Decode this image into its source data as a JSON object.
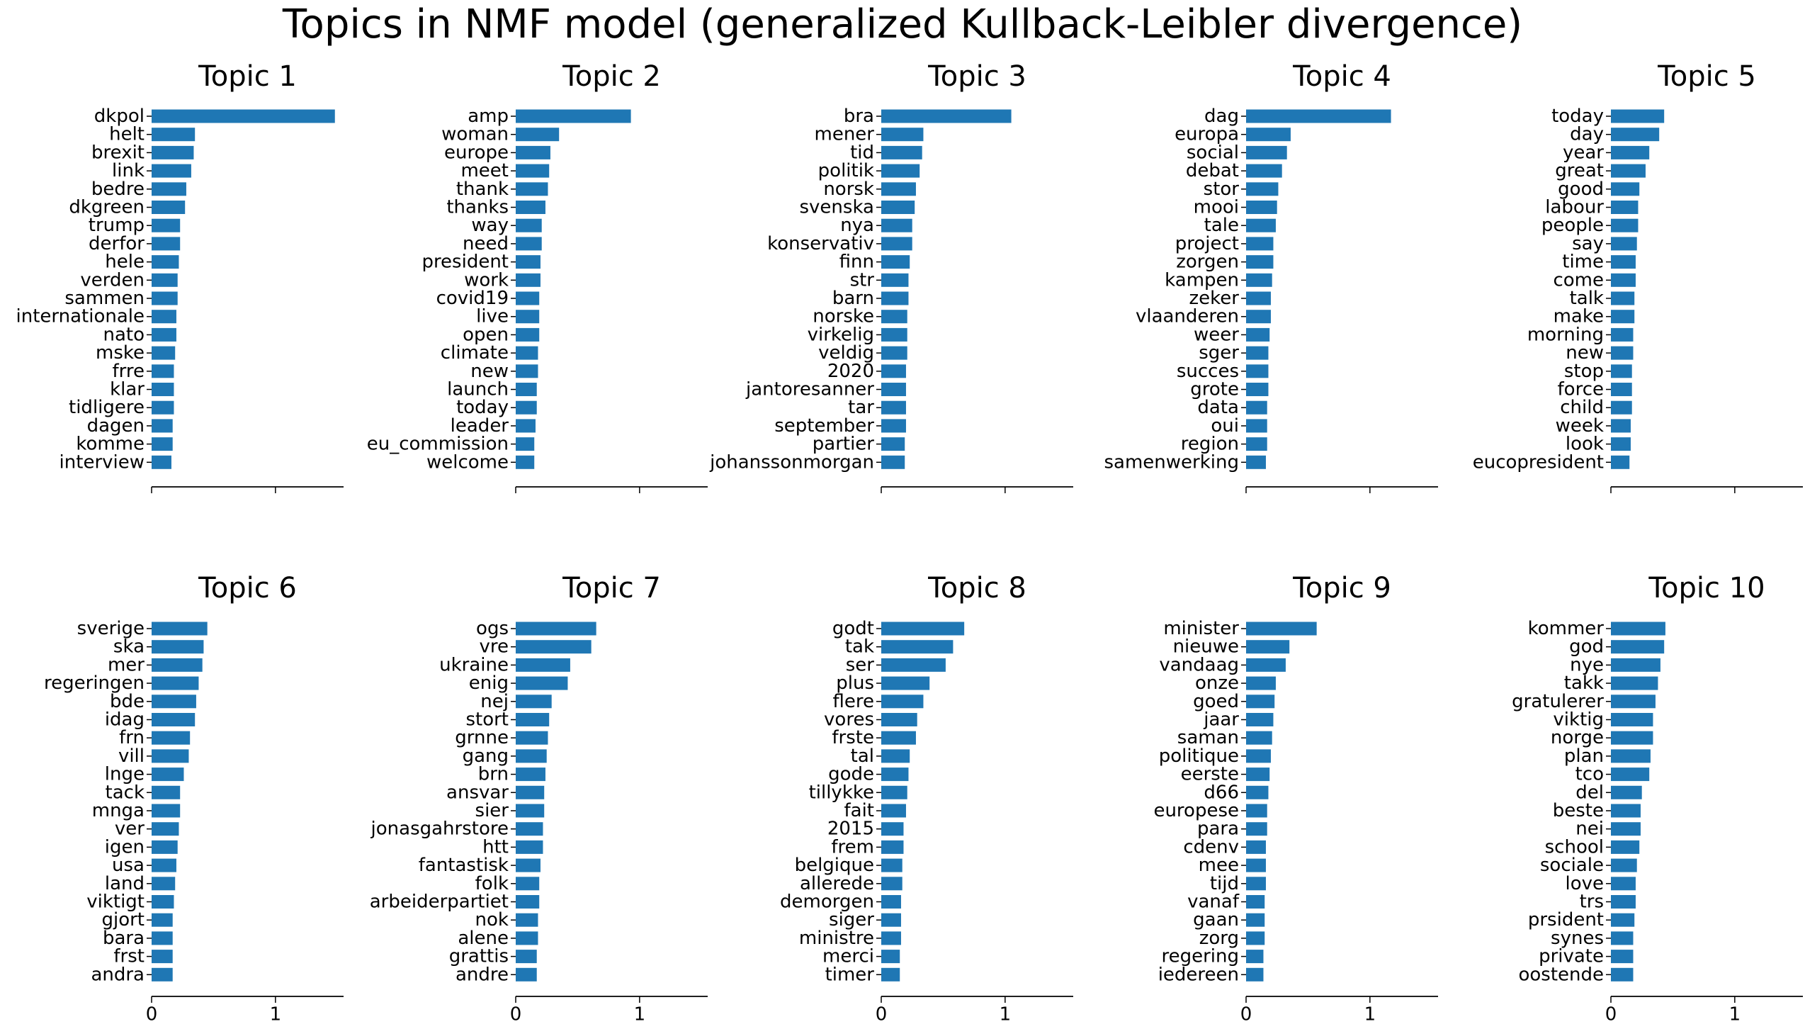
{
  "suptitle": "Topics in NMF model (generalized Kullback-Leibler divergence)",
  "colors": {
    "bar": "#1f77b4",
    "axis": "#000000",
    "text": "#000000"
  },
  "chart_data": [
    {
      "type": "bar",
      "orientation": "horizontal",
      "title": "Topic 1",
      "xlim": [
        0,
        1.55
      ],
      "xticks": [
        0,
        1
      ],
      "xtick_labels_visible": false,
      "categories": [
        "dkpol",
        "helt",
        "brexit",
        "link",
        "bedre",
        "dkgreen",
        "trump",
        "derfor",
        "hele",
        "verden",
        "sammen",
        "internationale",
        "nato",
        "mske",
        "frre",
        "klar",
        "tidligere",
        "dagen",
        "komme",
        "interview"
      ],
      "values": [
        1.48,
        0.35,
        0.34,
        0.32,
        0.28,
        0.27,
        0.23,
        0.23,
        0.22,
        0.21,
        0.21,
        0.2,
        0.2,
        0.19,
        0.18,
        0.18,
        0.18,
        0.17,
        0.17,
        0.16
      ]
    },
    {
      "type": "bar",
      "orientation": "horizontal",
      "title": "Topic 2",
      "xlim": [
        0,
        1.55
      ],
      "xticks": [
        0,
        1
      ],
      "xtick_labels_visible": false,
      "categories": [
        "amp",
        "woman",
        "europe",
        "meet",
        "thank",
        "thanks",
        "way",
        "need",
        "president",
        "work",
        "covid19",
        "live",
        "open",
        "climate",
        "new",
        "launch",
        "today",
        "leader",
        "eu_commission",
        "welcome"
      ],
      "values": [
        0.93,
        0.35,
        0.28,
        0.27,
        0.26,
        0.24,
        0.21,
        0.21,
        0.2,
        0.2,
        0.19,
        0.19,
        0.19,
        0.18,
        0.18,
        0.17,
        0.17,
        0.16,
        0.15,
        0.15
      ]
    },
    {
      "type": "bar",
      "orientation": "horizontal",
      "title": "Topic 3",
      "xlim": [
        0,
        1.55
      ],
      "xticks": [
        0,
        1
      ],
      "xtick_labels_visible": false,
      "categories": [
        "bra",
        "mener",
        "tid",
        "politik",
        "norsk",
        "svenska",
        "nya",
        "konservativ",
        "finn",
        "str",
        "barn",
        "norske",
        "virkelig",
        "veldig",
        "2020",
        "jantoresanner",
        "tar",
        "september",
        "partier",
        "johanssonmorgan"
      ],
      "values": [
        1.05,
        0.34,
        0.33,
        0.31,
        0.28,
        0.27,
        0.25,
        0.25,
        0.23,
        0.22,
        0.22,
        0.21,
        0.21,
        0.21,
        0.2,
        0.2,
        0.2,
        0.2,
        0.19,
        0.19
      ]
    },
    {
      "type": "bar",
      "orientation": "horizontal",
      "title": "Topic 4",
      "xlim": [
        0,
        1.55
      ],
      "xticks": [
        0,
        1
      ],
      "xtick_labels_visible": false,
      "categories": [
        "dag",
        "europa",
        "social",
        "debat",
        "stor",
        "mooi",
        "tale",
        "project",
        "zorgen",
        "kampen",
        "zeker",
        "vlaanderen",
        "weer",
        "sger",
        "succes",
        "grote",
        "data",
        "oui",
        "region",
        "samenwerking"
      ],
      "values": [
        1.17,
        0.36,
        0.33,
        0.29,
        0.26,
        0.25,
        0.24,
        0.22,
        0.22,
        0.21,
        0.2,
        0.2,
        0.19,
        0.18,
        0.18,
        0.18,
        0.17,
        0.17,
        0.17,
        0.16
      ]
    },
    {
      "type": "bar",
      "orientation": "horizontal",
      "title": "Topic 5",
      "xlim": [
        0,
        1.55
      ],
      "xticks": [
        0,
        1
      ],
      "xtick_labels_visible": false,
      "categories": [
        "today",
        "day",
        "year",
        "great",
        "good",
        "labour",
        "people",
        "say",
        "time",
        "come",
        "talk",
        "make",
        "morning",
        "new",
        "stop",
        "force",
        "child",
        "week",
        "look",
        "eucopresident"
      ],
      "values": [
        0.43,
        0.39,
        0.31,
        0.28,
        0.23,
        0.22,
        0.22,
        0.21,
        0.2,
        0.2,
        0.19,
        0.19,
        0.18,
        0.18,
        0.17,
        0.17,
        0.17,
        0.16,
        0.16,
        0.15
      ]
    },
    {
      "type": "bar",
      "orientation": "horizontal",
      "title": "Topic 6",
      "xlim": [
        0,
        1.55
      ],
      "xticks": [
        0,
        1
      ],
      "xtick_labels": [
        "0",
        "1"
      ],
      "categories": [
        "sverige",
        "ska",
        "mer",
        "regeringen",
        "bde",
        "idag",
        "frn",
        "vill",
        "lnge",
        "tack",
        "mnga",
        "ver",
        "igen",
        "usa",
        "land",
        "viktigt",
        "gjort",
        "bara",
        "frst",
        "andra"
      ],
      "values": [
        0.45,
        0.42,
        0.41,
        0.38,
        0.36,
        0.35,
        0.31,
        0.3,
        0.26,
        0.23,
        0.23,
        0.22,
        0.21,
        0.2,
        0.19,
        0.18,
        0.17,
        0.17,
        0.17,
        0.17
      ]
    },
    {
      "type": "bar",
      "orientation": "horizontal",
      "title": "Topic 7",
      "xlim": [
        0,
        1.55
      ],
      "xticks": [
        0,
        1
      ],
      "xtick_labels": [
        "0",
        "1"
      ],
      "categories": [
        "ogs",
        "vre",
        "ukraine",
        "enig",
        "nej",
        "stort",
        "grnne",
        "gang",
        "brn",
        "ansvar",
        "sier",
        "jonasgahrstore",
        "htt",
        "fantastisk",
        "folk",
        "arbeiderpartiet",
        "nok",
        "alene",
        "grattis",
        "andre"
      ],
      "values": [
        0.65,
        0.61,
        0.44,
        0.42,
        0.29,
        0.27,
        0.26,
        0.25,
        0.24,
        0.23,
        0.23,
        0.22,
        0.22,
        0.2,
        0.19,
        0.19,
        0.18,
        0.18,
        0.17,
        0.17
      ]
    },
    {
      "type": "bar",
      "orientation": "horizontal",
      "title": "Topic 8",
      "xlim": [
        0,
        1.55
      ],
      "xticks": [
        0,
        1
      ],
      "xtick_labels": [
        "0",
        "1"
      ],
      "categories": [
        "godt",
        "tak",
        "ser",
        "plus",
        "flere",
        "vores",
        "frste",
        "tal",
        "gode",
        "tillykke",
        "fait",
        "2015",
        "frem",
        "belgique",
        "allerede",
        "demorgen",
        "siger",
        "ministre",
        "merci",
        "timer"
      ],
      "values": [
        0.67,
        0.58,
        0.52,
        0.39,
        0.34,
        0.29,
        0.28,
        0.23,
        0.22,
        0.21,
        0.2,
        0.18,
        0.18,
        0.17,
        0.17,
        0.16,
        0.16,
        0.16,
        0.15,
        0.15
      ]
    },
    {
      "type": "bar",
      "orientation": "horizontal",
      "title": "Topic 9",
      "xlim": [
        0,
        1.55
      ],
      "xticks": [
        0,
        1
      ],
      "xtick_labels": [
        "0",
        "1"
      ],
      "categories": [
        "minister",
        "nieuwe",
        "vandaag",
        "onze",
        "goed",
        "jaar",
        "saman",
        "politique",
        "eerste",
        "d66",
        "europese",
        "para",
        "cdenv",
        "mee",
        "tijd",
        "vanaf",
        "gaan",
        "zorg",
        "regering",
        "iedereen"
      ],
      "values": [
        0.57,
        0.35,
        0.32,
        0.24,
        0.23,
        0.22,
        0.21,
        0.2,
        0.19,
        0.18,
        0.17,
        0.17,
        0.16,
        0.16,
        0.16,
        0.15,
        0.15,
        0.15,
        0.14,
        0.14
      ]
    },
    {
      "type": "bar",
      "orientation": "horizontal",
      "title": "Topic 10",
      "xlim": [
        0,
        1.55
      ],
      "xticks": [
        0,
        1
      ],
      "xtick_labels": [
        "0",
        "1"
      ],
      "categories": [
        "kommer",
        "god",
        "nye",
        "takk",
        "gratulerer",
        "viktig",
        "norge",
        "plan",
        "tco",
        "del",
        "beste",
        "nei",
        "school",
        "sociale",
        "love",
        "trs",
        "prsident",
        "synes",
        "private",
        "oostende"
      ],
      "values": [
        0.44,
        0.43,
        0.4,
        0.38,
        0.36,
        0.34,
        0.34,
        0.32,
        0.31,
        0.25,
        0.24,
        0.24,
        0.23,
        0.21,
        0.2,
        0.2,
        0.19,
        0.18,
        0.18,
        0.18
      ]
    }
  ]
}
